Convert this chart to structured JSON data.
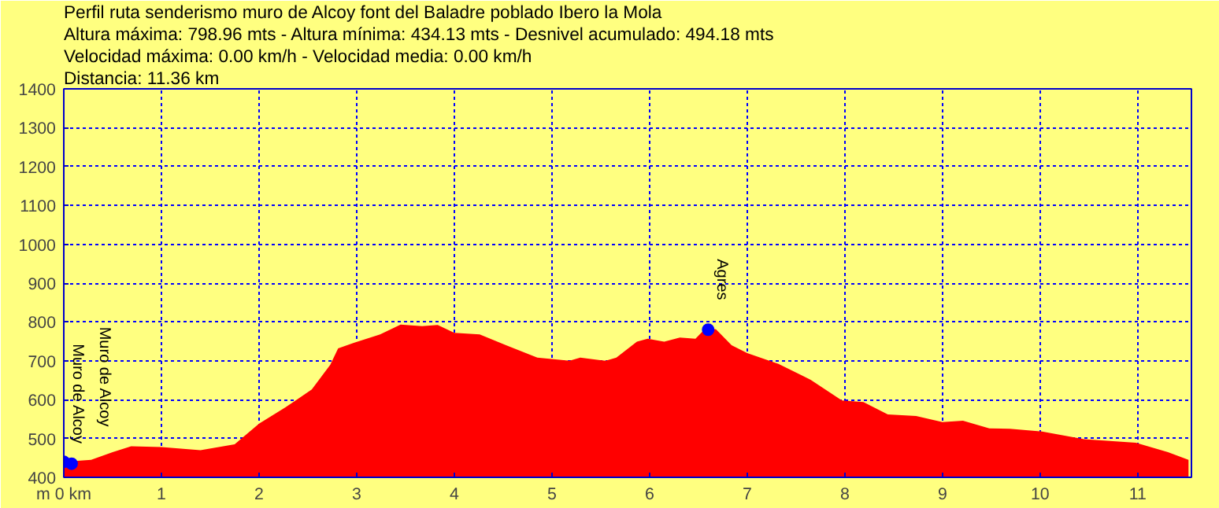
{
  "chart_data": {
    "type": "area",
    "title": "Perfil ruta senderismo muro de Alcoy font del Baladre poblado Ibero la Mola",
    "annotations": [
      "Altura máxima: 798.96 mts - Altura mínima: 434.13 mts - Desnivel acumulado: 494.18 mts",
      "Velocidad máxima: 0.00 km/h - Velocidad media: 0.00 km/h",
      "Distancia: 11.36 km",
      {
        "text": "Muro de Alcoy",
        "x": 0,
        "y": 440
      },
      {
        "text": "Muro de Alcoy",
        "x": 0.08,
        "y": 435
      },
      {
        "text": "Agres",
        "x": 6.6,
        "y": 780
      }
    ],
    "x": [
      0,
      0.28,
      0.5,
      0.69,
      1.0,
      1.4,
      1.75,
      2.0,
      2.27,
      2.54,
      2.73,
      2.81,
      2.97,
      3.24,
      3.45,
      3.67,
      3.83,
      4.0,
      4.26,
      4.53,
      4.85,
      5.18,
      5.29,
      5.55,
      5.66,
      5.87,
      5.98,
      6.15,
      6.31,
      6.47,
      6.58,
      6.68,
      6.84,
      7.0,
      7.32,
      7.65,
      7.97,
      8.19,
      8.44,
      8.73,
      9.0,
      9.21,
      9.48,
      9.69,
      10.02,
      10.45,
      10.98,
      11.31,
      11.52
    ],
    "series": [
      {
        "color": "#ff0000",
        "values": [
          440,
          445,
          465,
          480,
          478,
          470,
          485,
          538,
          580,
          626,
          690,
          732,
          746,
          768,
          793,
          789,
          792,
          772,
          768,
          740,
          708,
          700,
          708,
          700,
          708,
          749,
          757,
          749,
          760,
          757,
          785,
          781,
          740,
          720,
          692,
          651,
          598,
          594,
          562,
          558,
          542,
          546,
          526,
          525,
          518,
          498,
          489,
          465,
          445
        ]
      }
    ],
    "xlim": [
      0,
      11.55
    ],
    "ylim": [
      400,
      1400
    ],
    "xticks": [
      {
        "value": 0,
        "label": "m 0 km"
      },
      1,
      2,
      3,
      4,
      5,
      6,
      7,
      8,
      9,
      10,
      11
    ],
    "yticks": [
      400,
      500,
      600,
      700,
      800,
      900,
      1000,
      1100,
      1200,
      1300,
      1400
    ],
    "grid": true
  }
}
